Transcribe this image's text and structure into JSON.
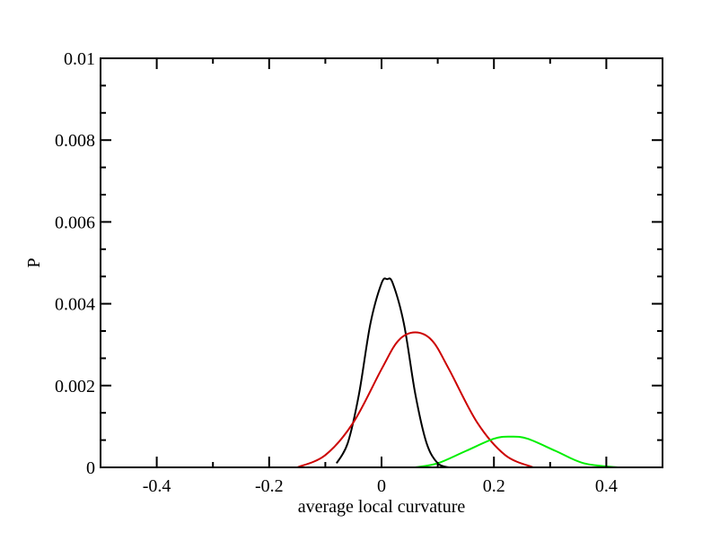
{
  "chart_data": {
    "type": "line",
    "title": "",
    "xlabel": "average local curvature",
    "ylabel": "P",
    "xlim": [
      -0.5,
      0.5
    ],
    "ylim": [
      0,
      0.01
    ],
    "x_ticks": [
      -0.4,
      -0.2,
      0,
      0.2,
      0.4
    ],
    "x_tick_labels": [
      "-0.4",
      "-0.2",
      "0",
      "0.2",
      "0.4"
    ],
    "y_ticks": [
      0,
      0.002,
      0.004,
      0.006,
      0.008,
      0.01
    ],
    "y_tick_labels": [
      "0",
      "0.002",
      "0.004",
      "0.006",
      "0.008",
      "0.01"
    ],
    "grid": false,
    "legend": "none",
    "series": [
      {
        "color": "#000000",
        "x": [
          -0.08,
          -0.06,
          -0.04,
          -0.02,
          0.0,
          0.01,
          0.02,
          0.04,
          0.06,
          0.08,
          0.1,
          0.12
        ],
        "y": [
          0.0001,
          0.0006,
          0.0018,
          0.0035,
          0.0045,
          0.0046,
          0.0045,
          0.0035,
          0.0018,
          0.0006,
          0.0001,
          0.0
        ]
      },
      {
        "color": "#cc0000",
        "x": [
          -0.15,
          -0.1,
          -0.05,
          0.0,
          0.03,
          0.06,
          0.09,
          0.12,
          0.17,
          0.22,
          0.27
        ],
        "y": [
          0.0,
          0.0003,
          0.0011,
          0.0024,
          0.0031,
          0.0033,
          0.0031,
          0.0024,
          0.0011,
          0.0003,
          0.0
        ]
      },
      {
        "color": "#00ee00",
        "x": [
          0.06,
          0.1,
          0.15,
          0.2,
          0.23,
          0.26,
          0.31,
          0.36,
          0.42
        ],
        "y": [
          0.0,
          0.0001,
          0.0004,
          0.0007,
          0.00075,
          0.0007,
          0.0004,
          0.0001,
          0.0
        ]
      }
    ]
  }
}
